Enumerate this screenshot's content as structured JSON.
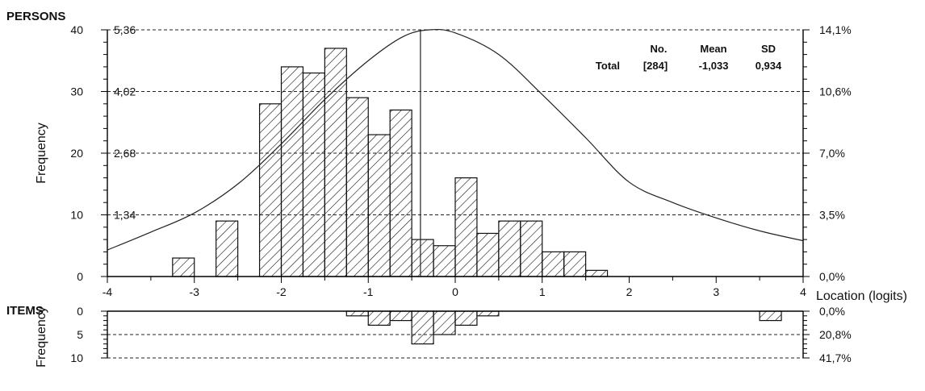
{
  "chart_data": {
    "type": "bar",
    "persons": {
      "section_label": "PERSONS",
      "ylabel": "Frequency",
      "xlabel": "Location (logits)",
      "xlim": [
        -4,
        4
      ],
      "ylim": [
        0,
        40
      ],
      "y_ticks": [
        "0",
        "10",
        "20",
        "30",
        "40"
      ],
      "y_inner_ticks": [
        "1,34",
        "2,68",
        "4,02",
        "5,36"
      ],
      "y_right_ticks": [
        "0,0%",
        "3,5%",
        "7,0%",
        "10,6%",
        "14,1%"
      ],
      "x_ticks": [
        "-4",
        "-3",
        "-2",
        "-1",
        "0",
        "1",
        "2",
        "3",
        "4"
      ],
      "bin_width": 0.25,
      "bars": [
        {
          "x": -3.125,
          "y": 3
        },
        {
          "x": -2.625,
          "y": 9
        },
        {
          "x": -2.125,
          "y": 28
        },
        {
          "x": -1.875,
          "y": 34
        },
        {
          "x": -1.625,
          "y": 33
        },
        {
          "x": -1.375,
          "y": 37
        },
        {
          "x": -1.125,
          "y": 29
        },
        {
          "x": -0.875,
          "y": 23
        },
        {
          "x": -0.625,
          "y": 27
        },
        {
          "x": -0.375,
          "y": 6
        },
        {
          "x": -0.125,
          "y": 5
        },
        {
          "x": 0.125,
          "y": 16
        },
        {
          "x": 0.375,
          "y": 7
        },
        {
          "x": 0.625,
          "y": 9
        },
        {
          "x": 0.875,
          "y": 9
        },
        {
          "x": 1.125,
          "y": 4
        },
        {
          "x": 1.375,
          "y": 4
        },
        {
          "x": 1.625,
          "y": 1
        }
      ],
      "mean_line_x": -0.4,
      "curve": [
        [
          -4,
          4.3
        ],
        [
          -3.5,
          7.2
        ],
        [
          -3,
          10.3
        ],
        [
          -2.5,
          15
        ],
        [
          -2,
          21.5
        ],
        [
          -1.5,
          28.7
        ],
        [
          -1,
          35
        ],
        [
          -0.6,
          38.9
        ],
        [
          -0.3,
          40
        ],
        [
          0,
          39.5
        ],
        [
          0.5,
          36
        ],
        [
          1,
          29.5
        ],
        [
          1.5,
          22.5
        ],
        [
          2,
          15.3
        ],
        [
          2.5,
          12
        ],
        [
          3,
          9.5
        ],
        [
          3.5,
          7.4
        ],
        [
          4,
          5.8
        ]
      ],
      "stats": {
        "col_no": "No.",
        "col_mean": "Mean",
        "col_sd": "SD",
        "row_label": "Total",
        "no": "[284]",
        "mean": "-1,033",
        "sd": "0,934"
      }
    },
    "items": {
      "section_label": "ITEMS",
      "ylabel": "Frequency",
      "ylim": [
        0,
        10
      ],
      "y_ticks": [
        "0",
        "5",
        "10"
      ],
      "y_right_ticks": [
        "0,0%",
        "20,8%",
        "41,7%"
      ],
      "bin_width": 0.25,
      "bars": [
        {
          "x": -1.125,
          "y": 1
        },
        {
          "x": -0.875,
          "y": 3
        },
        {
          "x": -0.625,
          "y": 2
        },
        {
          "x": -0.375,
          "y": 7
        },
        {
          "x": -0.125,
          "y": 5
        },
        {
          "x": 0.125,
          "y": 3
        },
        {
          "x": 0.375,
          "y": 1
        },
        {
          "x": 3.625,
          "y": 2
        }
      ]
    }
  }
}
